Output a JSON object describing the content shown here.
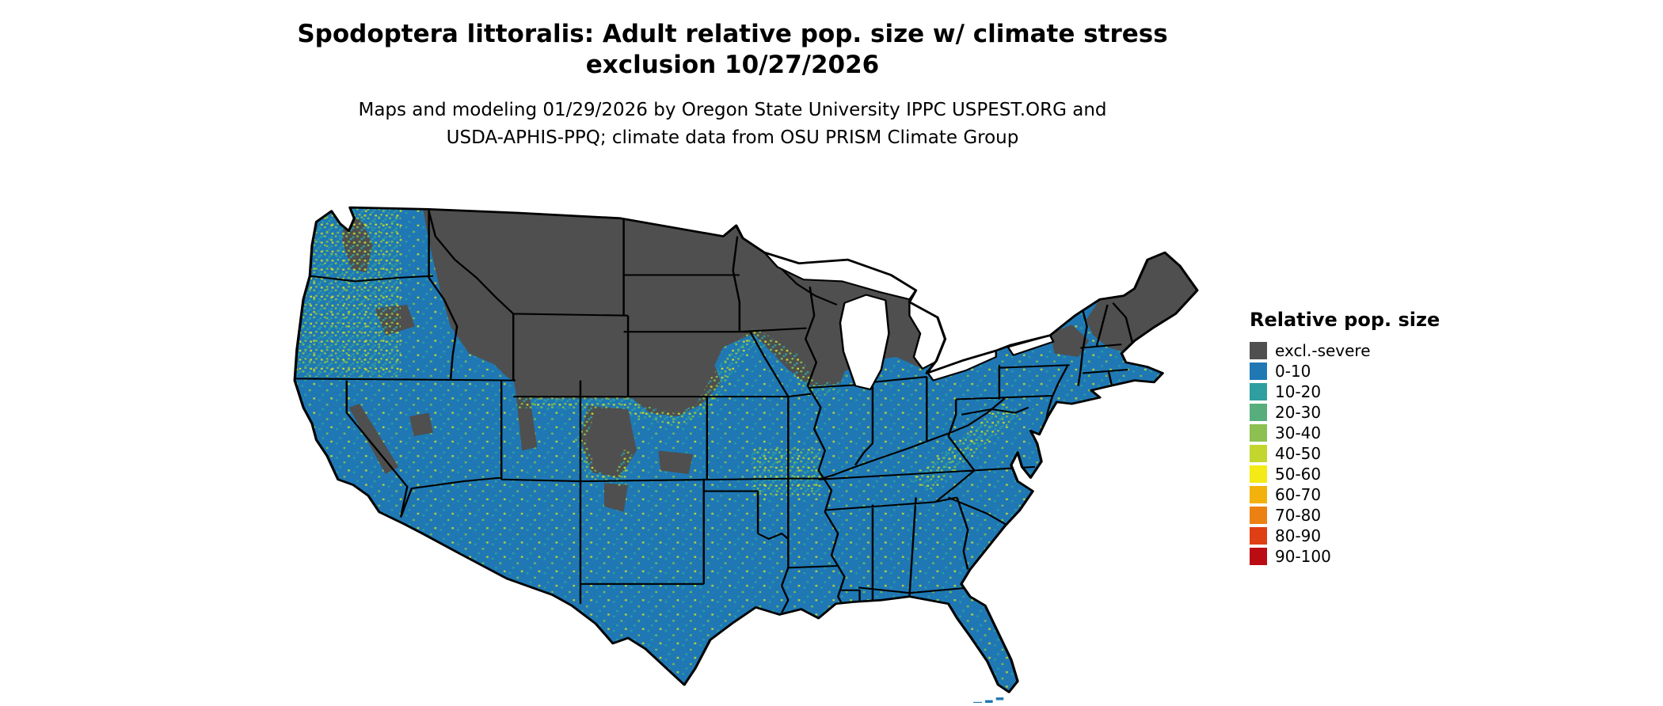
{
  "title": {
    "line1": "Spodoptera littoralis: Adult relative pop. size w/ climate stress",
    "line2": "exclusion 10/27/2026"
  },
  "subtitle": {
    "line1": "Maps and modeling 01/29/2026 by Oregon State University IPPC USPEST.ORG and",
    "line2": "USDA-APHIS-PPQ; climate data from OSU PRISM Climate Group"
  },
  "legend": {
    "title": "Relative pop. size",
    "items": [
      {
        "label": "excl.-severe",
        "color": "#4F4F4F"
      },
      {
        "label": "0-10",
        "color": "#1F78B4"
      },
      {
        "label": "10-20",
        "color": "#2E9E9E"
      },
      {
        "label": "20-30",
        "color": "#57AE7C"
      },
      {
        "label": "30-40",
        "color": "#8CC051"
      },
      {
        "label": "40-50",
        "color": "#C2D62D"
      },
      {
        "label": "50-60",
        "color": "#F4EA15"
      },
      {
        "label": "60-70",
        "color": "#F2B10D"
      },
      {
        "label": "70-80",
        "color": "#EB8013"
      },
      {
        "label": "80-90",
        "color": "#DE3F14"
      },
      {
        "label": "90-100",
        "color": "#BA0C12"
      }
    ]
  },
  "map": {
    "region_label": "continental-united-states",
    "base_color": "#1F78B4",
    "exclusion_color": "#4F4F4F",
    "border_color": "#000000",
    "water_color": "#FFFFFF",
    "speckle_colors": {
      "teal": "#2E9E9E",
      "green": "#7FBF4D",
      "yellow_green": "#C3D62E"
    }
  }
}
